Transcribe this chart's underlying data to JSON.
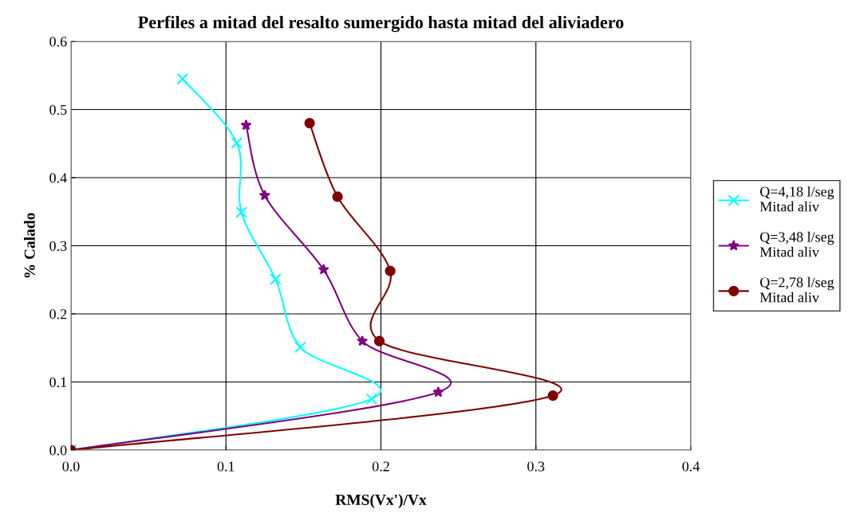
{
  "chart_data": {
    "type": "line",
    "title": "Perfiles a mitad del resalto sumergido hasta mitad del aliviadero",
    "xlabel": "RMS(Vx')/Vx",
    "ylabel": "% Calado",
    "xlim": [
      0,
      0.4
    ],
    "xticks": [
      {
        "value": 0,
        "label": "0.0"
      },
      0.1,
      0.2,
      0.3,
      0.4
    ],
    "ylim": [
      0,
      0.6
    ],
    "yticks": [
      {
        "value": 0,
        "label": "0.0"
      },
      0.1,
      0.2,
      0.3,
      0.4,
      0.5,
      0.6
    ],
    "grid": true,
    "legend": "right",
    "line_style": "solid",
    "series": [
      {
        "name": "Q=4,18 l/seg\nMitad aliv",
        "color": "#00ffff",
        "marker": "cross",
        "x": [
          0,
          0.194,
          0.148,
          0.132,
          0.11,
          0.107,
          0.072
        ],
        "values": [
          0,
          0.075,
          0.151,
          0.251,
          0.349,
          0.451,
          0.545
        ]
      },
      {
        "name": "Q=3,48 l/seg\nMitad aliv",
        "color": "#800080",
        "marker": "star",
        "x": [
          0,
          0.237,
          0.188,
          0.163,
          0.125,
          0.113
        ],
        "values": [
          0,
          0.085,
          0.16,
          0.265,
          0.374,
          0.477
        ]
      },
      {
        "name": "Q=2,78 l/seg\nMitad aliv",
        "color": "#800000",
        "marker": "circle",
        "x": [
          0,
          0.311,
          0.199,
          0.206,
          0.172,
          0.154
        ],
        "values": [
          0,
          0.08,
          0.16,
          0.263,
          0.372,
          0.48
        ]
      }
    ]
  }
}
